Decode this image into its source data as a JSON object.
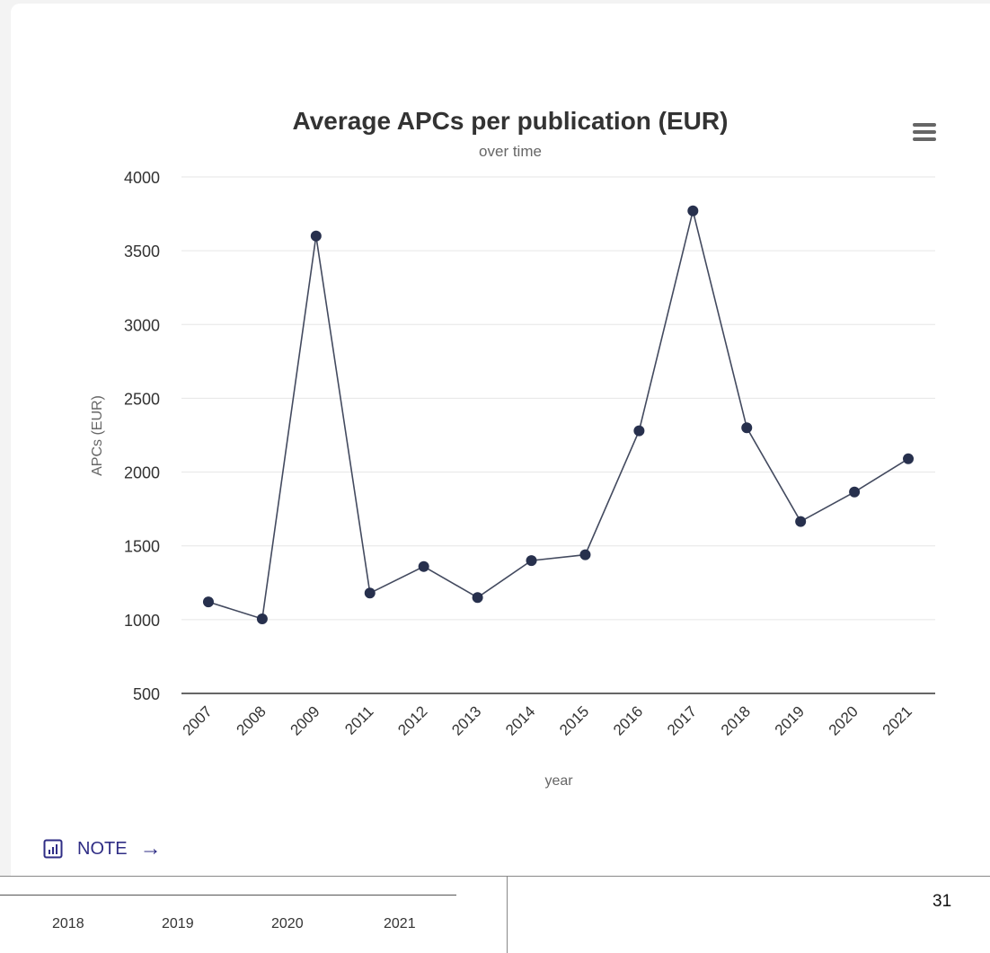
{
  "chart_data": {
    "type": "line",
    "title": "Average APCs per publication (EUR)",
    "subtitle": "over time",
    "xlabel": "year",
    "ylabel": "APCs (EUR)",
    "categories": [
      "2007",
      "2008",
      "2009",
      "2011",
      "2012",
      "2013",
      "2014",
      "2015",
      "2016",
      "2017",
      "2018",
      "2019",
      "2020",
      "2021"
    ],
    "series": [
      {
        "values": [
          1120,
          1005,
          3600,
          1180,
          1360,
          1150,
          1400,
          1440,
          2280,
          3770,
          2300,
          1665,
          1865,
          2090
        ]
      }
    ],
    "ylim": [
      500,
      4000
    ],
    "yticks": [
      500,
      1000,
      1500,
      2000,
      2500,
      3000,
      3500,
      4000
    ],
    "grid": true,
    "legend": "none",
    "colors": {
      "line": "#434a5f",
      "marker": "#27304d",
      "grid": "#e6e6e6",
      "axis": "#333333"
    }
  },
  "menu": {
    "icon": "hamburger-icon"
  },
  "note": {
    "icon": "chart-icon",
    "label": "NOTE",
    "arrow": "→"
  },
  "table": {
    "years": [
      "2018",
      "2019",
      "2020",
      "2021"
    ]
  },
  "page_number": "31"
}
